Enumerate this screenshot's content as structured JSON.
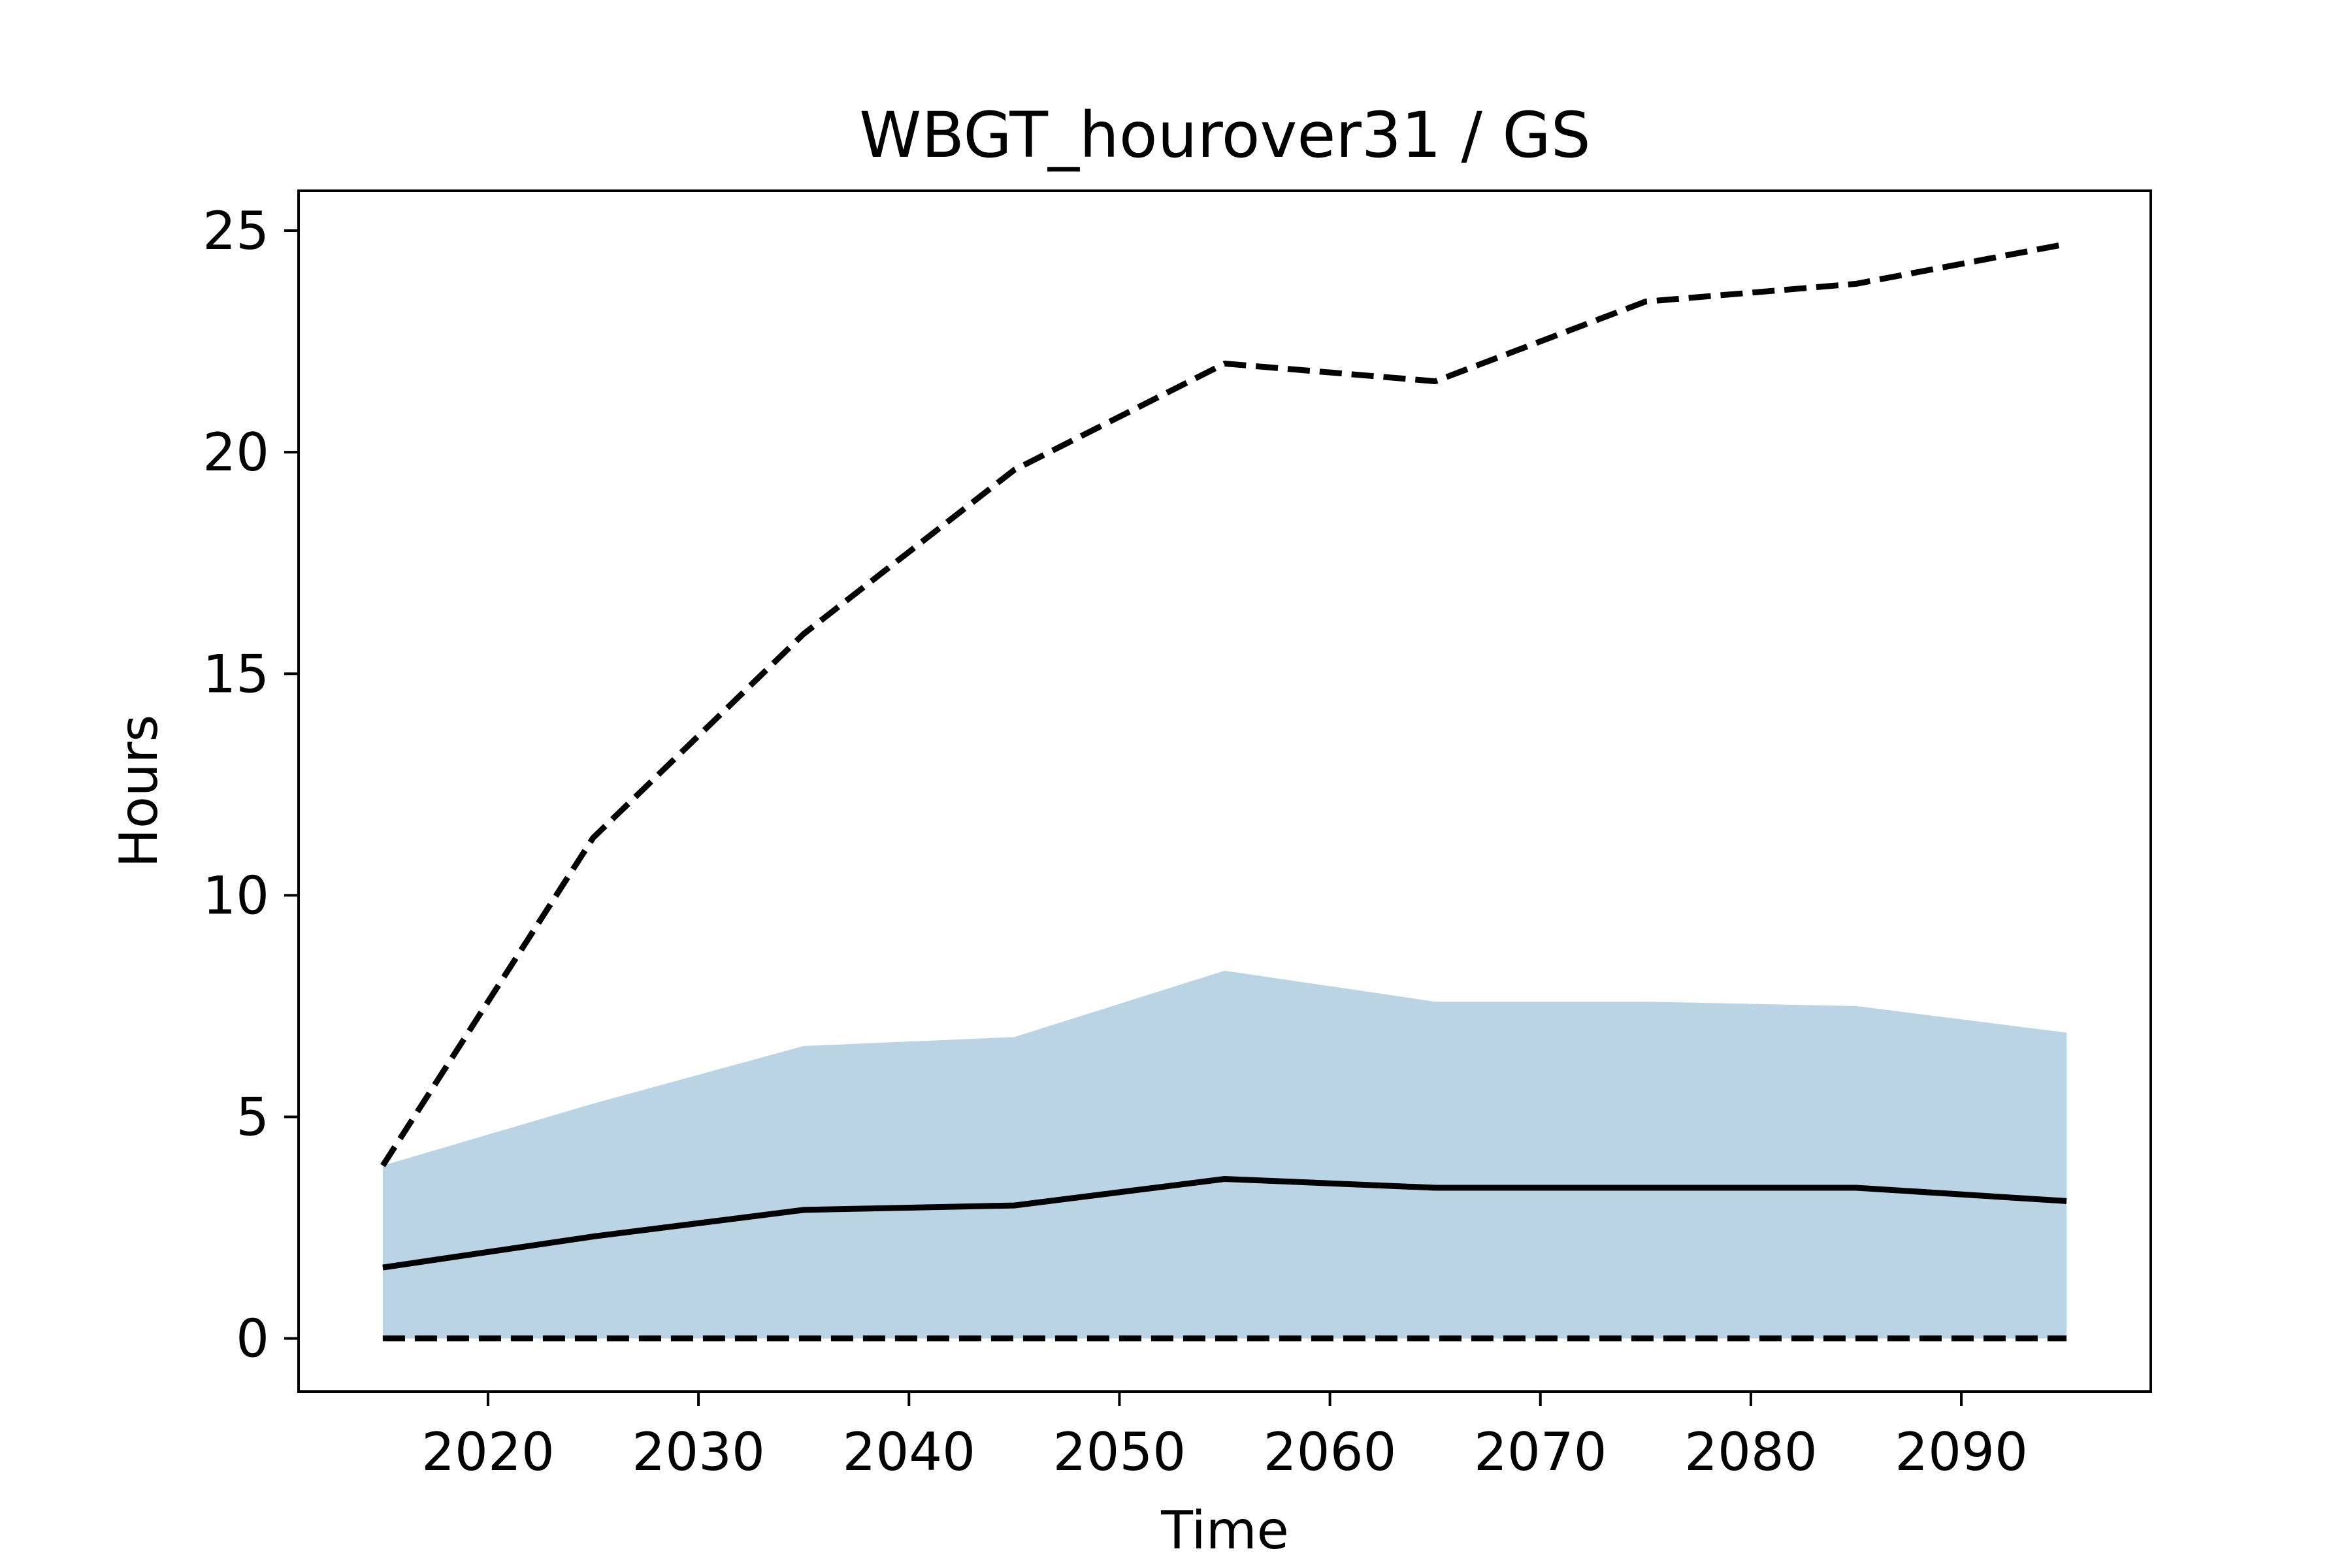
{
  "chart_data": {
    "type": "line",
    "title": "WBGT_hourover31 / GS",
    "xlabel": "Time",
    "ylabel": "Hours",
    "xlim": [
      2011,
      2099
    ],
    "ylim": [
      -1.2,
      25.9
    ],
    "xticks": [
      2020,
      2030,
      2040,
      2050,
      2060,
      2070,
      2080,
      2090
    ],
    "yticks": [
      0,
      5,
      10,
      15,
      20,
      25
    ],
    "x": [
      2015,
      2025,
      2035,
      2045,
      2055,
      2065,
      2075,
      2085,
      2095
    ],
    "band": {
      "lower": [
        0,
        0,
        0,
        0,
        0,
        0,
        0,
        0,
        0
      ],
      "upper": [
        3.9,
        5.3,
        6.6,
        6.8,
        8.3,
        7.6,
        7.6,
        7.5,
        6.9
      ],
      "color": "#bad4e6"
    },
    "series": [
      {
        "values": [
          1.6,
          2.3,
          2.9,
          3.0,
          3.6,
          3.4,
          3.4,
          3.4,
          3.1
        ],
        "style": "solid",
        "color": "#000000"
      },
      {
        "values": [
          3.9,
          11.3,
          15.9,
          19.6,
          22.0,
          21.6,
          23.4,
          23.8,
          24.7
        ],
        "style": "dashed",
        "color": "#000000"
      },
      {
        "values": [
          0,
          0,
          0,
          0,
          0,
          0,
          0,
          0,
          0
        ],
        "style": "dashed",
        "color": "#000000"
      }
    ],
    "grid": false,
    "legend": false
  }
}
